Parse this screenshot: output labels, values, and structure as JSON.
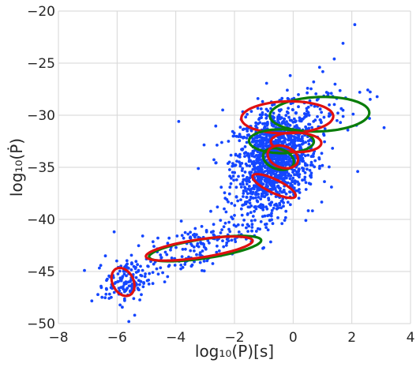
{
  "chart_data": {
    "type": "scatter",
    "xlabel": "log₁₀(P)[s]",
    "ylabel": "log₁₀(Ṗ)",
    "xlim": [
      -8,
      4
    ],
    "ylim": [
      -50,
      -20
    ],
    "x_ticks": [
      -8,
      -6,
      -4,
      -2,
      0,
      2,
      4
    ],
    "y_ticks": [
      -50,
      -45,
      -40,
      -35,
      -30,
      -25,
      -20
    ],
    "x_tick_labels": [
      "−8",
      "−6",
      "−4",
      "−2",
      "0",
      "2",
      "4"
    ],
    "y_tick_labels": [
      "−50",
      "−45",
      "−40",
      "−35",
      "−30",
      "−25",
      "−20"
    ],
    "grid": true,
    "colors": {
      "points": "#1446ff",
      "green": "#0a7d0a",
      "red": "#e01010",
      "grid": "#d6d6d6"
    },
    "point_clusters": [
      {
        "cx": -0.6,
        "cy": -33.8,
        "sx": 0.7,
        "sy": 2.2,
        "corr": 0.2,
        "n": 1100
      },
      {
        "cx": -0.9,
        "cy": -36.8,
        "sx": 0.55,
        "sy": 1.6,
        "corr": 0.3,
        "n": 220
      },
      {
        "cx": -3.2,
        "cy": -42.5,
        "sx": 1.3,
        "sy": 1.7,
        "corr": 0.75,
        "n": 210
      },
      {
        "cx": -5.7,
        "cy": -46.0,
        "sx": 0.35,
        "sy": 1.0,
        "corr": 0.1,
        "n": 130
      },
      {
        "cx": 0.5,
        "cy": -29.5,
        "sx": 1.2,
        "sy": 1.8,
        "corr": 0.5,
        "n": 80
      }
    ],
    "outlier_points": [
      [
        2.1,
        -21.3
      ],
      [
        1.7,
        -23.1
      ],
      [
        1.4,
        -24.6
      ],
      [
        0.7,
        -26.8
      ],
      [
        -3.9,
        -30.6
      ],
      [
        3.1,
        -31.2
      ],
      [
        2.2,
        -35.4
      ],
      [
        2.6,
        -30.3
      ],
      [
        -1.2,
        -28.4
      ],
      [
        -0.2,
        -27.6
      ],
      [
        -5.6,
        -49.8
      ],
      [
        -5.4,
        -49.2
      ],
      [
        -6.4,
        -43.5
      ],
      [
        -6.1,
        -41.2
      ],
      [
        -4.9,
        -45.2
      ],
      [
        -1.6,
        -40.8
      ],
      [
        -0.1,
        -26.2
      ],
      [
        1.2,
        -27.9
      ],
      [
        -2.4,
        -29.5
      ],
      [
        0.9,
        -25.4
      ]
    ],
    "ellipses": [
      {
        "color": "green",
        "cx": 0.9,
        "cy": -29.9,
        "rx": 3.5,
        "ry": 3.2,
        "angle": 38
      },
      {
        "color": "red",
        "cx": -0.2,
        "cy": -30.2,
        "rx": 3.2,
        "ry": 3.0,
        "angle": 36
      },
      {
        "color": "green",
        "cx": -0.4,
        "cy": -32.5,
        "rx": 2.2,
        "ry": 2.3,
        "angle": 18
      },
      {
        "color": "red",
        "cx": 0.1,
        "cy": -32.6,
        "rx": 1.7,
        "ry": 1.9,
        "angle": 18
      },
      {
        "color": "green",
        "cx": -0.5,
        "cy": -34.2,
        "rx": 1.0,
        "ry": 2.1,
        "angle": 10
      },
      {
        "color": "red",
        "cx": -0.35,
        "cy": -34.0,
        "rx": 1.0,
        "ry": 2.2,
        "angle": 8
      },
      {
        "color": "red",
        "cx": -0.65,
        "cy": -36.8,
        "rx": 0.8,
        "ry": 2.6,
        "angle": 30
      },
      {
        "color": "green",
        "cx": -3.0,
        "cy": -42.8,
        "rx": 4.2,
        "ry": 1.7,
        "angle": 27
      },
      {
        "color": "red",
        "cx": -3.2,
        "cy": -42.8,
        "rx": 4.0,
        "ry": 1.6,
        "angle": 27
      },
      {
        "color": "red",
        "cx": -5.8,
        "cy": -46.0,
        "rx": 0.75,
        "ry": 2.7,
        "angle": 5
      }
    ]
  }
}
